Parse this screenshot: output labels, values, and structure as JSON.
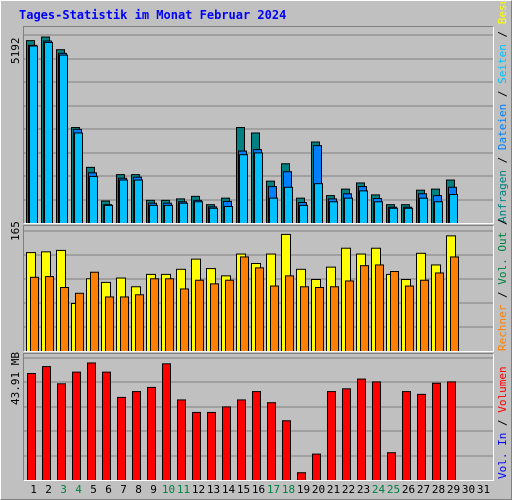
{
  "title": "Tages-Statistik im Monat Februar 2024",
  "colors": {
    "background": "#c0c0c0",
    "title": "#0000ff",
    "hits": "#008080",
    "files": "#00c0ff",
    "pages": "#0080ff",
    "visits": "#ffff00",
    "sites": "#ff8000",
    "kbytes": "#ff0000",
    "weekend_label": "#008040"
  },
  "axes": {
    "hits_max_label": "5192",
    "visits_max_label": "165",
    "volume_max_label": "43.91 MB"
  },
  "legends": {
    "hits": [
      {
        "text": "Anfragen",
        "color": "#008080"
      },
      {
        "text": " / ",
        "color": "#000000"
      },
      {
        "text": "Dateien",
        "color": "#0080ff"
      },
      {
        "text": " / ",
        "color": "#000000"
      },
      {
        "text": "Seiten",
        "color": "#00c0ff"
      },
      {
        "text": " / ",
        "color": "#000000"
      },
      {
        "text": "Besuche",
        "color": "#ffff00"
      }
    ],
    "visits": [
      {
        "text": "Rechner",
        "color": "#ff8000"
      },
      {
        "text": " / ",
        "color": "#000000"
      },
      {
        "text": "Vol. Out",
        "color": "#008040"
      },
      {
        "text": " / ",
        "color": "#000000"
      }
    ],
    "volume": [
      {
        "text": "Vol. In",
        "color": "#0000ff"
      },
      {
        "text": " / ",
        "color": "#000000"
      },
      {
        "text": "Volumen",
        "color": "#ff0000"
      }
    ]
  },
  "chart_data": [
    {
      "type": "bar",
      "name": "hits-files-pages",
      "categories": [
        "1",
        "2",
        "3",
        "4",
        "5",
        "6",
        "7",
        "8",
        "9",
        "10",
        "11",
        "12",
        "13",
        "14",
        "15",
        "16",
        "17",
        "18",
        "19",
        "20",
        "21",
        "22",
        "23",
        "24",
        "25",
        "26",
        "27",
        "28",
        "29",
        "30",
        "31"
      ],
      "weekend_days": [
        "3",
        "4",
        "10",
        "11",
        "17",
        "18",
        "24",
        "25"
      ],
      "ylim": [
        0,
        5192
      ],
      "series": [
        {
          "name": "Anfragen",
          "values": [
            5050,
            5150,
            4800,
            2650,
            1550,
            620,
            1350,
            1350,
            640,
            640,
            680,
            750,
            520,
            700,
            2650,
            2500,
            1170,
            1650,
            700,
            2250,
            770,
            950,
            1120,
            790,
            520,
            520,
            920,
            950,
            1200,
            0,
            0
          ]
        },
        {
          "name": "Dateien",
          "values": [
            4920,
            5040,
            4700,
            2600,
            1400,
            520,
            1250,
            1280,
            560,
            560,
            600,
            640,
            460,
            610,
            2000,
            2040,
            1020,
            1430,
            580,
            2150,
            680,
            820,
            1020,
            690,
            450,
            450,
            820,
            770,
            1000,
            0,
            0
          ]
        },
        {
          "name": "Seiten",
          "values": [
            4900,
            5000,
            4650,
            2500,
            1300,
            500,
            1200,
            1200,
            500,
            500,
            560,
            600,
            420,
            470,
            1900,
            1950,
            700,
            1000,
            500,
            1100,
            600,
            700,
            900,
            600,
            420,
            420,
            700,
            600,
            800,
            0,
            0
          ]
        }
      ]
    },
    {
      "type": "bar",
      "name": "visits-sites",
      "categories": [
        "1",
        "2",
        "3",
        "4",
        "5",
        "6",
        "7",
        "8",
        "9",
        "10",
        "11",
        "12",
        "13",
        "14",
        "15",
        "16",
        "17",
        "18",
        "19",
        "20",
        "21",
        "22",
        "23",
        "24",
        "25",
        "26",
        "27",
        "28",
        "29",
        "30",
        "31"
      ],
      "ylim": [
        0,
        165
      ],
      "series": [
        {
          "name": "Besuche",
          "values": [
            136,
            137,
            139,
            66,
            100,
            95,
            101,
            89,
            106,
            106,
            113,
            127,
            114,
            104,
            134,
            121,
            134,
            161,
            113,
            99,
            116,
            142,
            134,
            142,
            106,
            99,
            135,
            119,
            159,
            0,
            0
          ]
        },
        {
          "name": "Rechner",
          "values": [
            102,
            103,
            88,
            80,
            109,
            75,
            75,
            78,
            100,
            100,
            86,
            98,
            93,
            98,
            130,
            115,
            90,
            104,
            89,
            88,
            89,
            97,
            118,
            119,
            110,
            90,
            98,
            108,
            130,
            0,
            0
          ]
        }
      ]
    },
    {
      "type": "bar",
      "name": "volume",
      "categories": [
        "1",
        "2",
        "3",
        "4",
        "5",
        "6",
        "7",
        "8",
        "9",
        "10",
        "11",
        "12",
        "13",
        "14",
        "15",
        "16",
        "17",
        "18",
        "19",
        "20",
        "21",
        "22",
        "23",
        "24",
        "25",
        "26",
        "27",
        "28",
        "29",
        "30",
        "31"
      ],
      "ylim": [
        0,
        43.91
      ],
      "series": [
        {
          "name": "Volumen",
          "values": [
            38.5,
            41.0,
            34.8,
            39.0,
            42.3,
            39.0,
            29.9,
            32.0,
            33.5,
            42.0,
            29.0,
            24.5,
            24.5,
            26.5,
            29.0,
            32.0,
            28.0,
            21.5,
            2.8,
            9.5,
            32.0,
            33.0,
            36.5,
            35.5,
            10.0,
            32.0,
            31.0,
            35.0,
            35.5,
            0,
            0
          ]
        }
      ]
    }
  ]
}
